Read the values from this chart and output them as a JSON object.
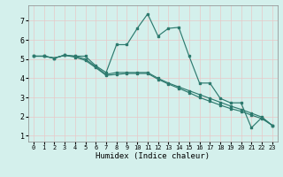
{
  "title": "",
  "xlabel": "Humidex (Indice chaleur)",
  "ylabel": "",
  "bg_color": "#d4f0ec",
  "grid_color_v": "#e8c8c8",
  "grid_color_h": "#e8c8c8",
  "line_color": "#2d7a6e",
  "xlim": [
    -0.5,
    23.5
  ],
  "ylim": [
    0.7,
    7.8
  ],
  "xticks": [
    0,
    1,
    2,
    3,
    4,
    5,
    6,
    7,
    8,
    9,
    10,
    11,
    12,
    13,
    14,
    15,
    16,
    17,
    18,
    19,
    20,
    21,
    22,
    23
  ],
  "yticks": [
    1,
    2,
    3,
    4,
    5,
    6,
    7
  ],
  "line1_x": [
    0,
    1,
    2,
    3,
    4,
    5,
    6,
    7,
    8,
    9,
    10,
    11,
    12,
    13,
    14,
    15,
    16,
    17,
    18,
    19,
    20,
    21,
    22,
    23
  ],
  "line1_y": [
    5.15,
    5.15,
    5.05,
    5.2,
    5.15,
    5.15,
    4.65,
    4.3,
    5.75,
    5.75,
    6.6,
    7.35,
    6.2,
    6.6,
    6.65,
    5.15,
    3.75,
    3.75,
    2.95,
    2.72,
    2.72,
    1.42,
    1.95,
    1.55
  ],
  "line2_x": [
    0,
    1,
    2,
    3,
    4,
    5,
    6,
    7,
    8,
    9,
    10,
    11,
    12,
    13,
    14,
    15,
    16,
    17,
    18,
    19,
    20,
    21,
    22,
    23
  ],
  "line2_y": [
    5.15,
    5.15,
    5.05,
    5.2,
    5.15,
    5.0,
    4.6,
    4.2,
    4.3,
    4.3,
    4.3,
    4.3,
    4.0,
    3.75,
    3.55,
    3.35,
    3.15,
    2.95,
    2.75,
    2.55,
    2.38,
    2.18,
    1.98,
    1.55
  ],
  "line3_x": [
    0,
    1,
    2,
    3,
    4,
    5,
    6,
    7,
    8,
    9,
    10,
    11,
    12,
    13,
    14,
    15,
    16,
    17,
    18,
    19,
    20,
    21,
    22,
    23
  ],
  "line3_y": [
    5.15,
    5.15,
    5.05,
    5.2,
    5.1,
    4.93,
    4.55,
    4.15,
    4.2,
    4.25,
    4.25,
    4.25,
    3.95,
    3.7,
    3.48,
    3.25,
    3.0,
    2.8,
    2.6,
    2.42,
    2.28,
    2.08,
    1.9,
    1.55
  ]
}
